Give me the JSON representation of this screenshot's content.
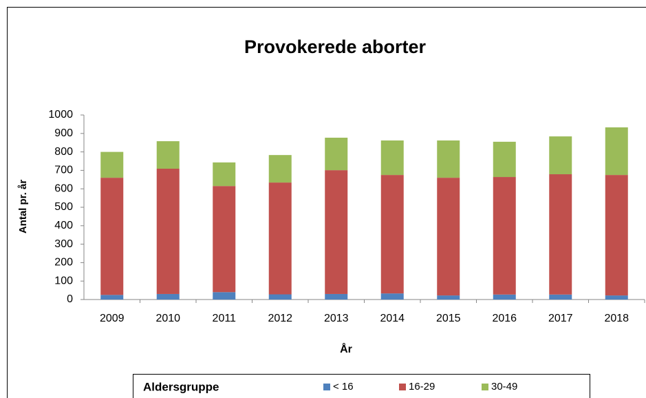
{
  "chart_data": {
    "type": "stacked_bar",
    "title": "Provokerede aborter",
    "x_label": "År",
    "y_label": "Antal pr. år",
    "legend_title": "Aldersgruppe",
    "categories": [
      "2009",
      "2010",
      "2011",
      "2012",
      "2013",
      "2014",
      "2015",
      "2016",
      "2017",
      "2018"
    ],
    "series": [
      {
        "name": "< 16",
        "color": "#4f81bd",
        "values": [
          25,
          30,
          40,
          28,
          30,
          33,
          22,
          27,
          27,
          22
        ]
      },
      {
        "name": "16-29",
        "color": "#c0504d",
        "values": [
          635,
          679,
          575,
          606,
          671,
          642,
          638,
          637,
          652,
          653
        ]
      },
      {
        "name": "30-49",
        "color": "#9bbb59",
        "values": [
          140,
          149,
          128,
          149,
          176,
          187,
          202,
          191,
          205,
          258
        ]
      }
    ],
    "ylim": [
      0,
      1000
    ],
    "yticks": [
      0,
      100,
      200,
      300,
      400,
      500,
      600,
      700,
      800,
      900,
      1000
    ],
    "grid": false
  }
}
